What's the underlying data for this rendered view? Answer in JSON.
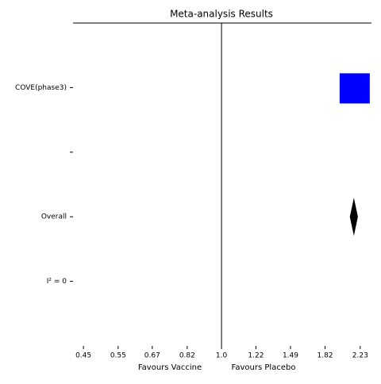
{
  "chart_data": {
    "type": "forest",
    "title": "Meta-analysis Results",
    "categories": [
      "COVE(phase3)",
      null,
      "Overall",
      "I² = 0"
    ],
    "values": [
      2.16,
      null,
      2.15,
      null
    ],
    "ci_lower": [
      null,
      null,
      2.1,
      null
    ],
    "ci_upper": [
      null,
      null,
      2.2,
      null
    ],
    "markers": [
      "square",
      null,
      "diamond",
      null
    ],
    "colors": [
      "#0000ff",
      null,
      "#000000",
      null
    ],
    "xscale": "log",
    "xlim": [
      0.416,
      2.38
    ],
    "xticks": [
      0.45,
      0.55,
      0.67,
      0.82,
      {
        "value": 1,
        "label": "1.0"
      },
      1.22,
      1.49,
      1.82,
      2.23
    ],
    "ref_line": 1,
    "xlabels": [
      "Favours Vaccine",
      "Favours Placebo"
    ]
  }
}
